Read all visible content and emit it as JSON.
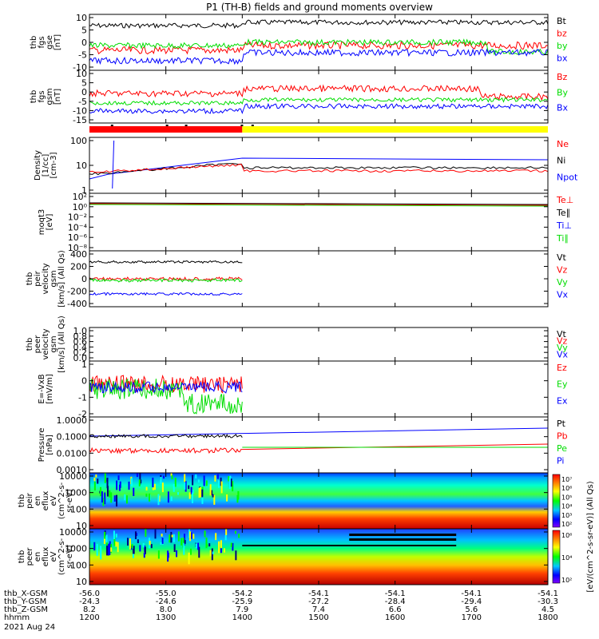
{
  "title": "P1 (TH-B) fields and ground moments overview",
  "colors": {
    "black": "#000000",
    "red": "#ff0000",
    "green": "#00dd00",
    "blue": "#0000ff",
    "yellow": "#ffff00"
  },
  "chart_data": {
    "type": "line",
    "x_ticks": [
      "1200",
      "1300",
      "1400",
      "1500",
      "1600",
      "1700",
      "1800"
    ],
    "x_range": [
      1200,
      1800
    ],
    "ephemeris": {
      "labels": [
        "thb_X-GSM",
        "thb_Y-GSM",
        "thb_Z-GSM",
        "hhmm"
      ],
      "rows": [
        [
          "-56.0",
          "-55.0",
          "-54.2",
          "-54.1",
          "-54.1",
          "-54.1",
          "-54.1"
        ],
        [
          "-24.3",
          "-24.6",
          "-25.9",
          "-27.2",
          "-28.4",
          "-29.4",
          "-30.3"
        ],
        [
          "8.2",
          "8.0",
          "7.9",
          "7.4",
          "6.6",
          "5.6",
          "4.5"
        ],
        [
          "1200",
          "1300",
          "1400",
          "1500",
          "1600",
          "1700",
          "1800"
        ]
      ],
      "date": "2021 Aug 24"
    },
    "panels": [
      {
        "id": "fgs-gse",
        "ylabel": [
          "thb",
          "fgs",
          "gse",
          "[nT]"
        ],
        "ticks": [
          "10",
          "5",
          "0",
          "-5",
          "-10"
        ],
        "ylim": [
          -10,
          10
        ],
        "legend": [
          {
            "name": "Bt",
            "color": "black"
          },
          {
            "name": "bz",
            "color": "red"
          },
          {
            "name": "by",
            "color": "green"
          },
          {
            "name": "bx",
            "color": "blue"
          }
        ]
      },
      {
        "id": "fgs-gsm",
        "ylabel": [
          "thb",
          "fgs",
          "gsm",
          "[nT]"
        ],
        "ticks": [
          "10",
          "5",
          "0",
          "-5",
          "-10",
          "-15"
        ],
        "ylim": [
          -17,
          10
        ],
        "legend": [
          {
            "name": "Bz",
            "color": "red"
          },
          {
            "name": "By",
            "color": "green"
          },
          {
            "name": "Bx",
            "color": "blue"
          }
        ]
      },
      {
        "id": "density",
        "ylabel": [
          "Density",
          "[1/cc]",
          "[cm-3]"
        ],
        "ticks": [
          "100",
          "10",
          "1"
        ],
        "log": true,
        "legend": [
          {
            "name": "Ne",
            "color": "red"
          },
          {
            "name": "Ni",
            "color": "black"
          },
          {
            "name": "Npot",
            "color": "blue"
          }
        ]
      },
      {
        "id": "temperature",
        "ylabel": [
          "moqt3",
          "[eV]"
        ],
        "ticks": [
          "10²",
          "10⁰",
          "10⁻²",
          "10⁻⁴",
          "10⁻⁶",
          "10⁻⁸"
        ],
        "log": true,
        "legend": [
          {
            "name": "Te⊥",
            "color": "red"
          },
          {
            "name": "Te∥",
            "color": "black"
          },
          {
            "name": "Ti⊥",
            "color": "blue"
          },
          {
            "name": "Ti∥",
            "color": "green"
          }
        ]
      },
      {
        "id": "peir-velocity",
        "ylabel": [
          "thb",
          "peir",
          "velocity",
          "gsm",
          "[km/s] (All Qs)"
        ],
        "ticks": [
          "400",
          "200",
          "0",
          "-200",
          "-400"
        ],
        "ylim": [
          -400,
          400
        ],
        "legend": [
          {
            "name": "Vt",
            "color": "black"
          },
          {
            "name": "Vz",
            "color": "red"
          },
          {
            "name": "Vy",
            "color": "green"
          },
          {
            "name": "Vx",
            "color": "blue"
          }
        ]
      },
      {
        "id": "peer-velocity",
        "ylabel": [
          "thb",
          "peer",
          "velocity",
          "gsm",
          "[km/s] (All Qs)"
        ],
        "ticks": [
          "1.0",
          "0.8",
          "0.6",
          "0.4",
          "0.2",
          "0.0"
        ],
        "ylim": [
          0,
          1
        ],
        "legend": [
          {
            "name": "Vt",
            "color": "black"
          },
          {
            "name": "Vz",
            "color": "red"
          },
          {
            "name": "Vy",
            "color": "green"
          },
          {
            "name": "Vx",
            "color": "blue"
          }
        ]
      },
      {
        "id": "efield",
        "ylabel": [
          "E=-VxB",
          "[mV/m]"
        ],
        "ticks": [
          "1",
          "0",
          "-1",
          "-2"
        ],
        "ylim": [
          -2,
          1.5
        ],
        "legend": [
          {
            "name": "Ez",
            "color": "red"
          },
          {
            "name": "Ey",
            "color": "green"
          },
          {
            "name": "Ex",
            "color": "blue"
          }
        ]
      },
      {
        "id": "pressure",
        "ylabel": [
          "Pressure",
          "[nPa]"
        ],
        "ticks": [
          "1.0000",
          "0.1000",
          "0.0100",
          "0.0010"
        ],
        "log": true,
        "legend": [
          {
            "name": "Pt",
            "color": "black"
          },
          {
            "name": "Pb",
            "color": "red"
          },
          {
            "name": "Pe",
            "color": "green"
          },
          {
            "name": "Pi",
            "color": "blue"
          }
        ]
      },
      {
        "id": "peir-spectrogram",
        "ylabel": [
          "thb",
          "peir",
          "en",
          "eflux",
          "eV",
          "(cm^2-s-",
          "sr-eV)"
        ],
        "ticks": [
          "10000",
          "1000",
          "100",
          "10"
        ],
        "log": true,
        "colorbar": [
          "10⁷",
          "10⁶",
          "10⁵",
          "10⁴",
          "10³",
          "10²"
        ]
      },
      {
        "id": "peer-spectrogram",
        "ylabel": [
          "thb",
          "peer",
          "en",
          "eflux",
          "eV",
          "(cm^2-s-",
          "sr-eV)"
        ],
        "ticks": [
          "10000",
          "1000",
          "100",
          "10"
        ],
        "log": true,
        "colorbar": [
          "10⁶",
          "10⁴",
          "10²"
        ]
      }
    ],
    "colorbar_label": "[eV/(cm^2-s-sr-eV)] (All Qs)"
  }
}
